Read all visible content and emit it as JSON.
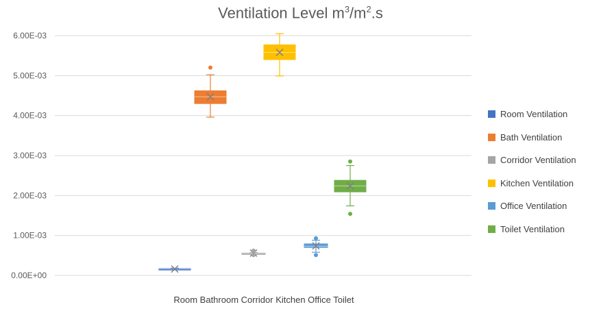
{
  "chart_data": {
    "type": "box",
    "title": "Ventilation Level m",
    "title_sup1": "3",
    "title_mid": "/m",
    "title_sup2": "2",
    "title_end": ".s",
    "x_caption": "Room Bathroom Corridor Kitchen Office Toilet",
    "ylim": [
      0,
      0.006
    ],
    "y_ticks": [
      "0.00E+00",
      "1.00E-03",
      "2.00E-03",
      "3.00E-03",
      "4.00E-03",
      "5.00E-03",
      "6.00E-03"
    ],
    "grid": true,
    "legend_position": "right",
    "series": [
      {
        "name": "Room Ventilation",
        "color": "#4472C4",
        "min": 0.00014,
        "q1": 0.00015,
        "median": 0.00016,
        "q3": 0.00017,
        "max": 0.00018,
        "mean": 0.00016,
        "outliers": []
      },
      {
        "name": "Bath Ventilation",
        "color": "#ED7D31",
        "min": 0.00396,
        "q1": 0.0043,
        "median": 0.00447,
        "q3": 0.00462,
        "max": 0.00502,
        "mean": 0.00447,
        "outliers": [
          0.0052
        ]
      },
      {
        "name": "Corridor Ventilation",
        "color": "#A5A5A5",
        "min": 0.00054,
        "q1": 0.00054,
        "median": 0.00055,
        "q3": 0.00056,
        "max": 0.00057,
        "mean": 0.00056,
        "outliers": [
          0.00051,
          0.00062
        ]
      },
      {
        "name": "Kitchen Ventilation",
        "color": "#FFC000",
        "min": 0.00499,
        "q1": 0.0054,
        "median": 0.00558,
        "q3": 0.00577,
        "max": 0.00605,
        "mean": 0.00558,
        "outliers": []
      },
      {
        "name": "Office Ventilation",
        "color": "#5B9BD5",
        "min": 0.00058,
        "q1": 0.0007,
        "median": 0.00073,
        "q3": 0.00079,
        "max": 0.00088,
        "mean": 0.00074,
        "outliers": [
          0.00051,
          0.00093
        ]
      },
      {
        "name": "Toilet Ventilation",
        "color": "#70AD47",
        "min": 0.00174,
        "q1": 0.00209,
        "median": 0.00224,
        "q3": 0.00238,
        "max": 0.00275,
        "mean": 0.00224,
        "outliers": [
          0.00154,
          0.00285
        ]
      }
    ]
  }
}
